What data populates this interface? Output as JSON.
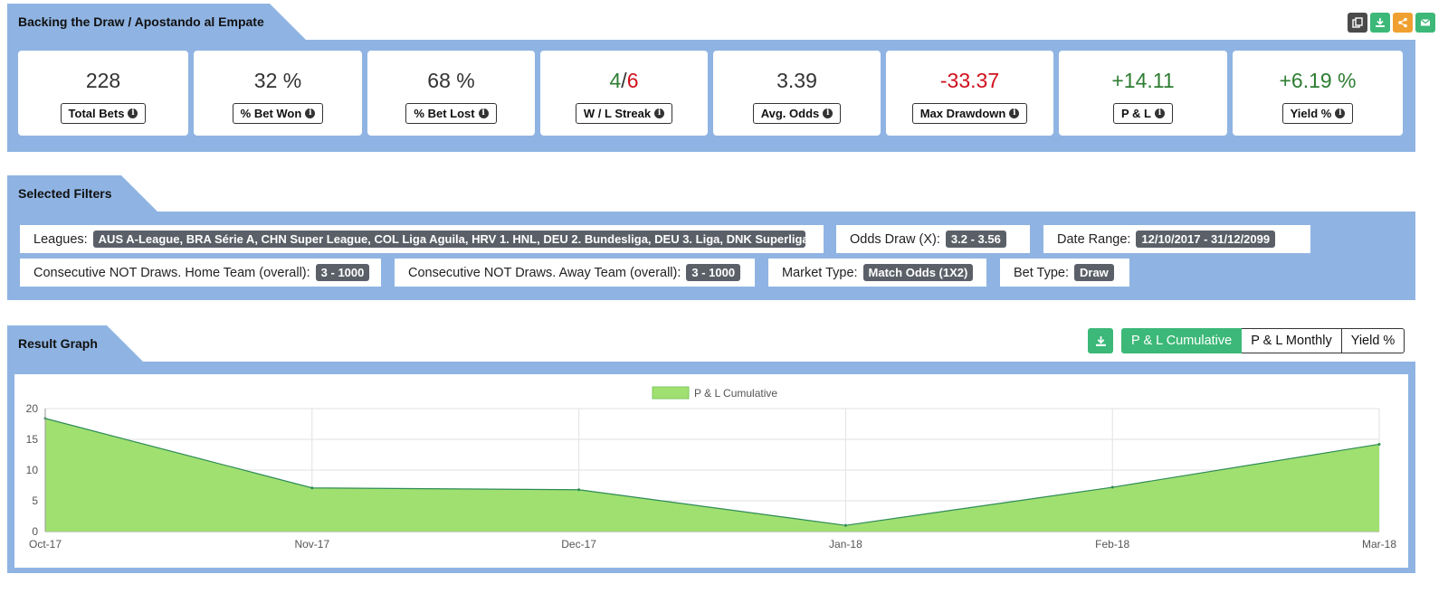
{
  "header": {
    "title": "Backing the Draw / Apostando al Empate",
    "icons": [
      {
        "name": "copy-icon",
        "color": "#4a4a4a"
      },
      {
        "name": "download-icon",
        "color": "#3cb878"
      },
      {
        "name": "share-icon",
        "color": "#f0a030"
      },
      {
        "name": "mail-icon",
        "color": "#3cb878"
      }
    ]
  },
  "stats": {
    "total_bets": {
      "value": "228",
      "label": "Total Bets"
    },
    "bet_won": {
      "value": "32 %",
      "label": "% Bet Won"
    },
    "bet_lost": {
      "value": "68 %",
      "label": "% Bet Lost"
    },
    "streak": {
      "win": "4",
      "sep": "/",
      "loss": "6",
      "label": "W / L Streak"
    },
    "avg_odds": {
      "value": "3.39",
      "label": "Avg. Odds"
    },
    "max_drawdown": {
      "value": "-33.37",
      "label": "Max Drawdown"
    },
    "pl": {
      "value": "+14.11",
      "label": "P & L"
    },
    "yield": {
      "value": "+6.19 %",
      "label": "Yield %"
    }
  },
  "filters": {
    "title": "Selected Filters",
    "leagues": {
      "label": "Leagues:",
      "value": "AUS A-League, BRA Série A, CHN Super League, COL Liga Aguila, HRV 1. HNL, DEU 2. Bundesliga, DEU 3. Liga, DNK Superliga ..."
    },
    "odds_draw": {
      "label": "Odds Draw (X):",
      "value": "3.2 - 3.56"
    },
    "date_range": {
      "label": "Date Range:",
      "value": "12/10/2017 - 31/12/2099"
    },
    "home_not_draws": {
      "label": "Consecutive NOT Draws. Home Team (overall):",
      "value": "3 - 1000"
    },
    "away_not_draws": {
      "label": "Consecutive NOT Draws. Away Team (overall):",
      "value": "3 - 1000"
    },
    "market_type": {
      "label": "Market Type:",
      "value": "Match Odds (1X2)"
    },
    "bet_type": {
      "label": "Bet Type:",
      "value": "Draw"
    }
  },
  "graph": {
    "title": "Result Graph",
    "buttons": {
      "cumulative": "P & L Cumulative",
      "monthly": "P & L Monthly",
      "yield": "Yield %"
    }
  },
  "colors": {
    "accent": "#3cb878",
    "panel": "#8fb4e3",
    "area_fill": "#a0e070",
    "area_line": "#2e8b57"
  },
  "chart_data": {
    "type": "area",
    "x": [
      "Oct-17",
      "Nov-17",
      "Dec-17",
      "Jan-18",
      "Feb-18",
      "Mar-18"
    ],
    "series": [
      {
        "name": "P & L Cumulative",
        "values": [
          18.4,
          7.1,
          6.8,
          1.0,
          7.2,
          14.2
        ]
      }
    ],
    "yticks": [
      "0",
      "5",
      "10",
      "15",
      "20"
    ],
    "ylim": [
      0,
      20
    ],
    "grid": true,
    "legend": "top-center"
  }
}
